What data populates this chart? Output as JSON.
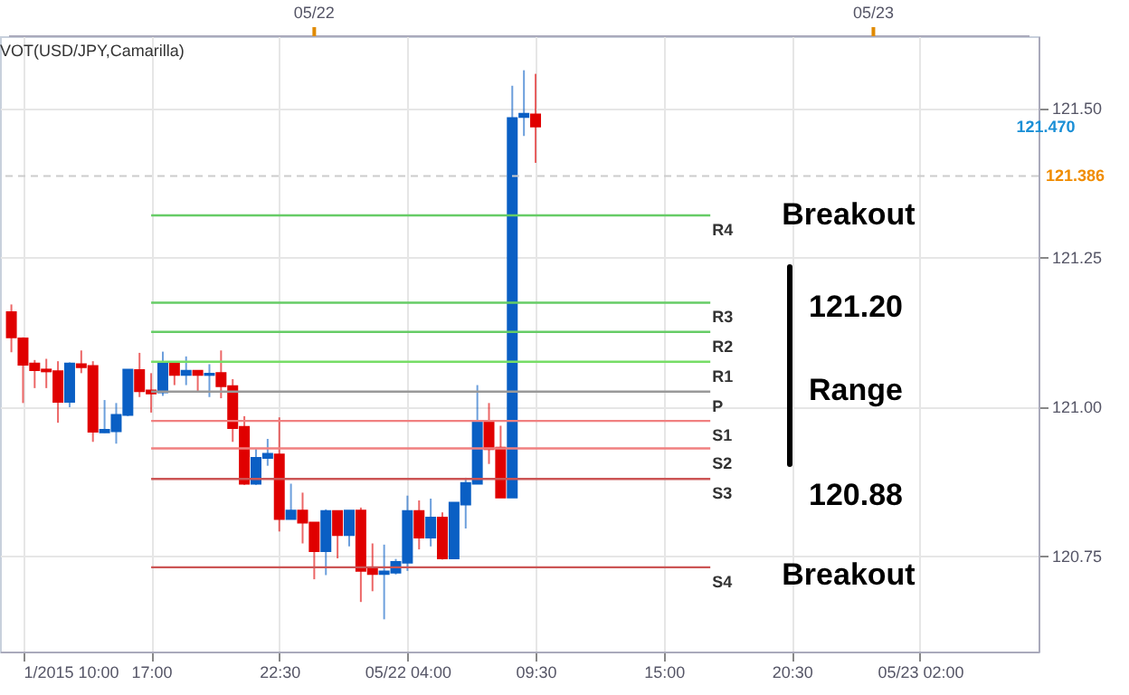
{
  "chart_data": {
    "type": "candlestick",
    "title": "VOT(USD/JPY,Camarilla)",
    "x": [
      "2015-05-21T11:00",
      "2015-05-21T11:30",
      "2015-05-21T12:00",
      "2015-05-21T12:30",
      "2015-05-21T13:00",
      "2015-05-21T13:30",
      "2015-05-21T14:00",
      "2015-05-21T14:30",
      "2015-05-21T15:00",
      "2015-05-21T15:30",
      "2015-05-21T16:00",
      "2015-05-21T16:30",
      "2015-05-21T17:00",
      "2015-05-21T17:30",
      "2015-05-21T18:00",
      "2015-05-21T18:30",
      "2015-05-21T19:00",
      "2015-05-21T19:30",
      "2015-05-21T20:00",
      "2015-05-21T20:30",
      "2015-05-21T21:00",
      "2015-05-21T21:30",
      "2015-05-21T22:00",
      "2015-05-21T22:30",
      "2015-05-21T23:00",
      "2015-05-21T23:30",
      "2015-05-22T00:00",
      "2015-05-22T00:30",
      "2015-05-22T01:00",
      "2015-05-22T01:30",
      "2015-05-22T02:00",
      "2015-05-22T02:30",
      "2015-05-22T03:00",
      "2015-05-22T03:30",
      "2015-05-22T04:00",
      "2015-05-22T04:30",
      "2015-05-22T05:00",
      "2015-05-22T05:30",
      "2015-05-22T06:00",
      "2015-05-22T06:30",
      "2015-05-22T07:00",
      "2015-05-22T07:30",
      "2015-05-22T08:00",
      "2015-05-22T08:30",
      "2015-05-22T09:00",
      "2015-05-22T09:30"
    ],
    "ohlc": [
      [
        121.158,
        121.171,
        121.091,
        121.116
      ],
      [
        121.114,
        121.116,
        121.006,
        121.07
      ],
      [
        121.072,
        121.078,
        121.031,
        121.061
      ],
      [
        121.062,
        121.08,
        121.031,
        121.059
      ],
      [
        121.059,
        121.076,
        120.973,
        121.008
      ],
      [
        121.008,
        121.074,
        120.999,
        121.072
      ],
      [
        121.071,
        121.094,
        121.056,
        121.066
      ],
      [
        121.068,
        121.076,
        120.941,
        120.958
      ],
      [
        120.957,
        121.011,
        120.956,
        120.961
      ],
      [
        120.959,
        121.006,
        120.938,
        120.986
      ],
      [
        120.986,
        121.062,
        120.984,
        121.062
      ],
      [
        121.061,
        121.09,
        121.016,
        121.026
      ],
      [
        121.027,
        121.056,
        120.99,
        121.022
      ],
      [
        121.024,
        121.092,
        121.018,
        121.072
      ],
      [
        121.073,
        121.073,
        121.036,
        121.053
      ],
      [
        121.053,
        121.084,
        121.036,
        121.06
      ],
      [
        121.06,
        121.06,
        121.026,
        121.053
      ],
      [
        121.053,
        121.071,
        121.016,
        121.055
      ],
      [
        121.056,
        121.094,
        121.014,
        121.034
      ],
      [
        121.034,
        121.046,
        120.941,
        120.964
      ],
      [
        120.966,
        120.984,
        120.869,
        120.871
      ],
      [
        120.871,
        120.929,
        120.869,
        120.914
      ],
      [
        120.914,
        120.946,
        120.901,
        120.921
      ],
      [
        120.92,
        120.982,
        120.791,
        120.812
      ],
      [
        120.812,
        120.871,
        120.812,
        120.826
      ],
      [
        120.826,
        120.856,
        120.771,
        120.806
      ],
      [
        120.806,
        120.806,
        120.711,
        120.758
      ],
      [
        120.758,
        120.828,
        120.718,
        120.825
      ],
      [
        120.825,
        120.825,
        120.746,
        120.785
      ],
      [
        120.785,
        120.826,
        120.766,
        120.826
      ],
      [
        120.826,
        120.831,
        120.673,
        120.725
      ],
      [
        120.728,
        120.771,
        120.691,
        120.72
      ],
      [
        120.72,
        120.769,
        120.644,
        120.724
      ],
      [
        120.722,
        120.745,
        120.719,
        120.74
      ],
      [
        120.739,
        120.851,
        120.725,
        120.825
      ],
      [
        120.825,
        120.843,
        120.761,
        120.781
      ],
      [
        120.781,
        120.846,
        120.766,
        120.814
      ],
      [
        120.814,
        120.823,
        120.744,
        120.746
      ],
      [
        120.746,
        120.839,
        120.746,
        120.839
      ],
      [
        120.836,
        120.881,
        120.796,
        120.872
      ],
      [
        120.871,
        121.036,
        120.871,
        120.974
      ],
      [
        120.974,
        121.006,
        120.904,
        120.929
      ],
      [
        120.931,
        120.968,
        120.848,
        120.848
      ],
      [
        120.848,
        121.537,
        120.848,
        121.483
      ],
      [
        121.485,
        121.563,
        121.453,
        121.49
      ],
      [
        121.489,
        121.557,
        121.408,
        121.469
      ]
    ],
    "colors": [
      "#e00000",
      "#e00000",
      "#e00000",
      "#e00000",
      "#e00000",
      "#0a5fc4",
      "#e00000",
      "#e00000",
      "#0a5fc4",
      "#0a5fc4",
      "#0a5fc4",
      "#e00000",
      "#e00000",
      "#0a5fc4",
      "#e00000",
      "#0a5fc4",
      "#e00000",
      "#0a5fc4",
      "#e00000",
      "#e00000",
      "#e00000",
      "#0a5fc4",
      "#0a5fc4",
      "#e00000",
      "#0a5fc4",
      "#e00000",
      "#e00000",
      "#0a5fc4",
      "#e00000",
      "#0a5fc4",
      "#e00000",
      "#e00000",
      "#0a5fc4",
      "#0a5fc4",
      "#0a5fc4",
      "#e00000",
      "#0a5fc4",
      "#e00000",
      "#0a5fc4",
      "#0a5fc4",
      "#0a5fc4",
      "#e00000",
      "#e00000",
      "#0a5fc4",
      "#0a5fc4",
      "#e00000"
    ],
    "series": [
      {
        "type": "line",
        "name": "R4",
        "color": "#66cc66",
        "x": [
          "2015-05-21T17:00",
          "2015-05-22T17:00"
        ],
        "values": [
          121.32,
          121.32
        ]
      },
      {
        "type": "line",
        "name": "R3",
        "color": "#66cc66",
        "x": [
          "2015-05-21T17:00",
          "2015-05-22T17:00"
        ],
        "values": [
          121.174,
          121.174
        ]
      },
      {
        "type": "line",
        "name": "R2",
        "color": "#66cc66",
        "x": [
          "2015-05-21T17:00",
          "2015-05-22T17:00"
        ],
        "values": [
          121.125,
          121.125
        ]
      },
      {
        "type": "line",
        "name": "R1",
        "color": "#77dd66",
        "x": [
          "2015-05-21T17:00",
          "2015-05-22T17:00"
        ],
        "values": [
          121.075,
          121.075
        ]
      },
      {
        "type": "line",
        "name": "P",
        "color": "#999999",
        "x": [
          "2015-05-21T17:00",
          "2015-05-22T17:00"
        ],
        "values": [
          121.025,
          121.025
        ]
      },
      {
        "type": "line",
        "name": "S1",
        "color": "#f08080",
        "x": [
          "2015-05-21T17:00",
          "2015-05-22T17:00"
        ],
        "values": [
          120.976,
          120.976
        ]
      },
      {
        "type": "line",
        "name": "S2",
        "color": "#f08080",
        "x": [
          "2015-05-21T17:00",
          "2015-05-22T17:00"
        ],
        "values": [
          120.93,
          120.93
        ]
      },
      {
        "type": "line",
        "name": "S3",
        "color": "#cc5555",
        "x": [
          "2015-05-21T17:00",
          "2015-05-22T17:00"
        ],
        "values": [
          120.879,
          120.879
        ]
      },
      {
        "type": "line",
        "name": "S4",
        "color": "#cc5555",
        "x": [
          "2015-05-21T17:00",
          "2015-05-22T17:00"
        ],
        "values": [
          120.731,
          120.731
        ]
      }
    ],
    "xlim": [
      "2015-05-21T10:54",
      "2015-05-23T06:42"
    ],
    "xticks": [
      {
        "value": "2015-05-21T11:30",
        "label": "1/2015 10:00"
      },
      {
        "value": "2015-05-21T17:00",
        "label": "17:00"
      },
      {
        "value": "2015-05-21T22:30",
        "label": "22:30"
      },
      {
        "value": "2015-05-22T04:00",
        "label": "05/22 04:00"
      },
      {
        "value": "2015-05-22T09:30",
        "label": "09:30"
      },
      {
        "value": "2015-05-22T15:00",
        "label": "15:00"
      },
      {
        "value": "2015-05-22T20:30",
        "label": "20:30"
      },
      {
        "value": "2015-05-23T02:00",
        "label": "05/23 02:00"
      }
    ],
    "x2lim": [
      "2015-05-21T10:54",
      "2015-05-23T06:42"
    ],
    "x2ticks": [
      {
        "value": "2015-05-22",
        "label": "05/22"
      },
      {
        "value": "2015-05-23",
        "label": "05/23"
      }
    ],
    "ylim": [
      120.59,
      121.62
    ],
    "yticks": [
      {
        "value": 120.75,
        "label": "120.75"
      },
      {
        "value": 121,
        "label": "121.00"
      },
      {
        "value": 121.25,
        "label": "121.25"
      },
      {
        "value": 121.5,
        "label": "121.50"
      }
    ],
    "ref_lines": [
      {
        "axis": "y",
        "value": 121.386,
        "label": "121.386",
        "color": "#cccccc",
        "line_style": "dashed"
      }
    ],
    "annotations": [
      "Breakout",
      "121.20",
      "Range",
      "120.88",
      "Breakout",
      "121.470"
    ],
    "grid": true
  }
}
